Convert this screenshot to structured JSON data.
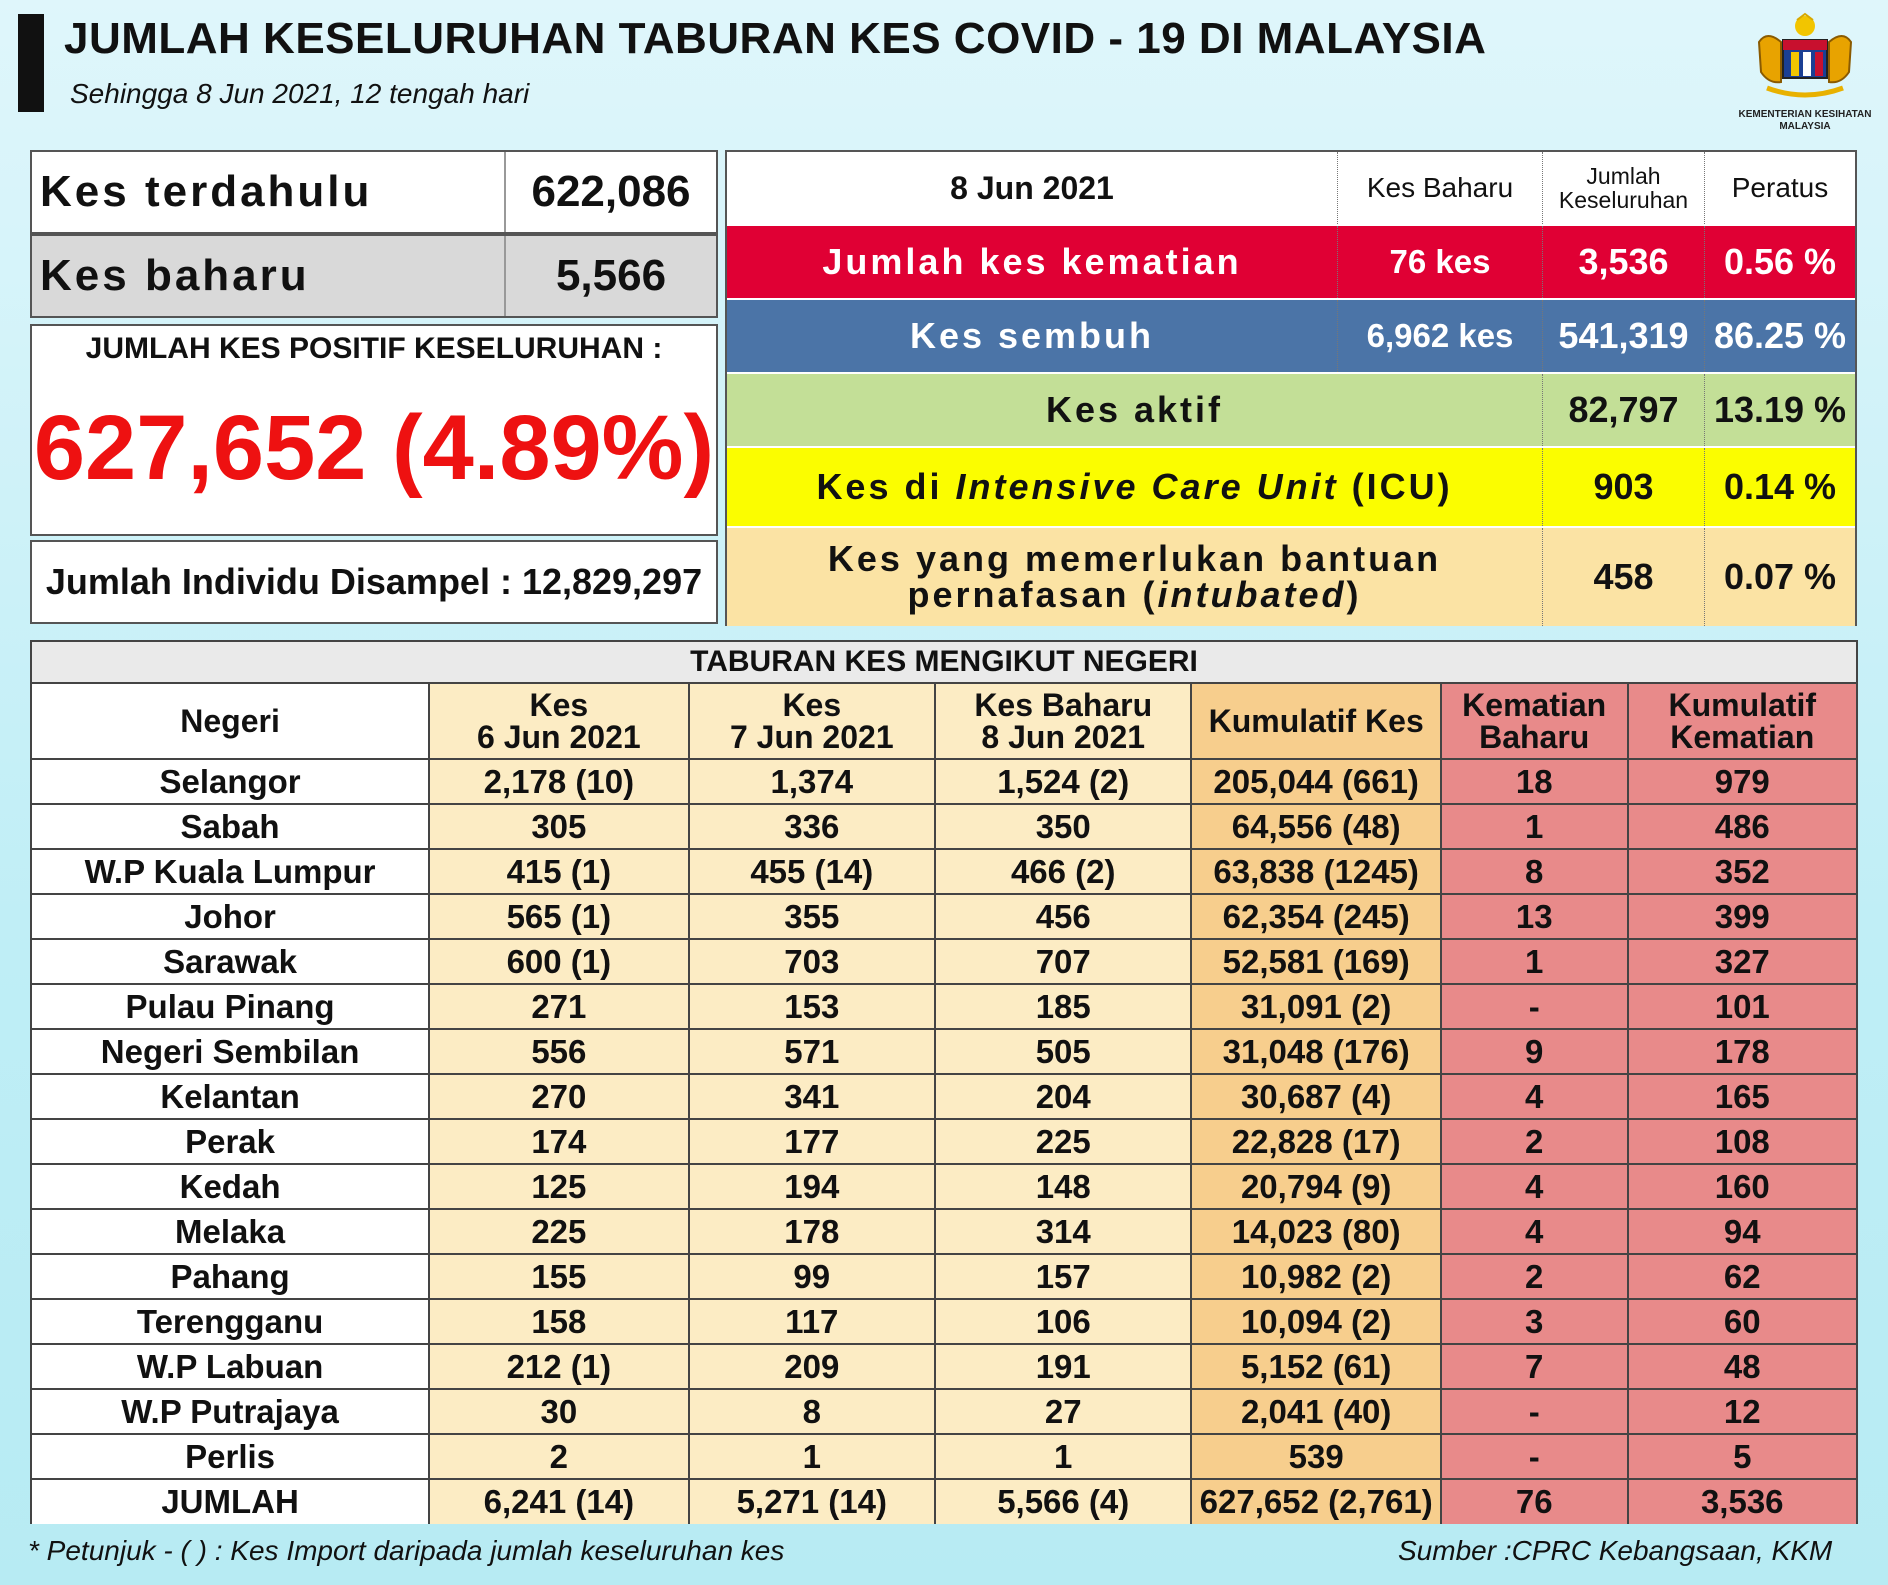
{
  "header": {
    "title": "JUMLAH KESELURUHAN TABURAN KES COVID - 19 DI MALAYSIA",
    "subtitle": "Sehingga 8 Jun 2021, 12 tengah hari"
  },
  "logo": {
    "name": "coat-of-arms-icon",
    "caption_line1": "KEMENTERIAN KESIHATAN",
    "caption_line2": "MALAYSIA"
  },
  "summary": {
    "terdahulu_label": "Kes terdahulu",
    "terdahulu_value": "622,086",
    "baharu_label": "Kes baharu",
    "baharu_value": "5,566",
    "positif_label": "JUMLAH KES POSITIF KESELURUHAN :",
    "positif_value": "627,652 (4.89%)",
    "sampel": "Jumlah Individu Disampel : 12,829,297"
  },
  "stats": {
    "head": {
      "date": "8 Jun 2021",
      "kes_baharu": "Kes Baharu",
      "jumlah_line1": "Jumlah",
      "jumlah_line2": "Keseluruhan",
      "peratus": "Peratus"
    },
    "kematian": {
      "label": "Jumlah kes kematian",
      "baharu": "76 kes",
      "jumlah": "3,536",
      "peratus": "0.56 %"
    },
    "sembuh": {
      "label": "Kes sembuh",
      "baharu": "6,962 kes",
      "jumlah": "541,319",
      "peratus": "86.25 %"
    },
    "aktif": {
      "label": "Kes aktif",
      "jumlah": "82,797",
      "peratus": "13.19 %"
    },
    "icu": {
      "label_pre": "Kes di ",
      "label_italic": "Intensive Care Unit",
      "label_post": " (ICU)",
      "jumlah": "903",
      "peratus": "0.14 %"
    },
    "intubated": {
      "label_line1": "Kes yang memerlukan bantuan",
      "label_line2_pre": "pernafasan (",
      "label_line2_italic": "intubated",
      "label_line2_post": ")",
      "jumlah": "458",
      "peratus": "0.07 %"
    }
  },
  "colors": {
    "kematian": "#e00034",
    "sembuh": "#4b74a7",
    "aktif": "#c3df97",
    "icu": "#fbfd00",
    "intubated": "#fbe3a4",
    "positif_text": "#ee1111"
  },
  "state_table": {
    "caption": "TABURAN KES MENGIKUT NEGERI",
    "columns": [
      [
        "Negeri"
      ],
      [
        "Kes",
        "6 Jun 2021"
      ],
      [
        "Kes",
        "7 Jun 2021"
      ],
      [
        "Kes Baharu",
        "8 Jun 2021"
      ],
      [
        "Kumulatif Kes"
      ],
      [
        "Kematian",
        "Baharu"
      ],
      [
        "Kumulatif",
        "Kematian"
      ]
    ],
    "rows": [
      [
        "Selangor",
        "2,178 (10)",
        "1,374",
        "1,524 (2)",
        "205,044 (661)",
        "18",
        "979"
      ],
      [
        "Sabah",
        "305",
        "336",
        "350",
        "64,556 (48)",
        "1",
        "486"
      ],
      [
        "W.P Kuala Lumpur",
        "415 (1)",
        "455 (14)",
        "466 (2)",
        "63,838 (1245)",
        "8",
        "352"
      ],
      [
        "Johor",
        "565 (1)",
        "355",
        "456",
        "62,354 (245)",
        "13",
        "399"
      ],
      [
        "Sarawak",
        "600 (1)",
        "703",
        "707",
        "52,581 (169)",
        "1",
        "327"
      ],
      [
        "Pulau Pinang",
        "271",
        "153",
        "185",
        "31,091 (2)",
        "-",
        "101"
      ],
      [
        "Negeri Sembilan",
        "556",
        "571",
        "505",
        "31,048 (176)",
        "9",
        "178"
      ],
      [
        "Kelantan",
        "270",
        "341",
        "204",
        "30,687 (4)",
        "4",
        "165"
      ],
      [
        "Perak",
        "174",
        "177",
        "225",
        "22,828 (17)",
        "2",
        "108"
      ],
      [
        "Kedah",
        "125",
        "194",
        "148",
        "20,794 (9)",
        "4",
        "160"
      ],
      [
        "Melaka",
        "225",
        "178",
        "314",
        "14,023 (80)",
        "4",
        "94"
      ],
      [
        "Pahang",
        "155",
        "99",
        "157",
        "10,982 (2)",
        "2",
        "62"
      ],
      [
        "Terengganu",
        "158",
        "117",
        "106",
        "10,094 (2)",
        "3",
        "60"
      ],
      [
        "W.P Labuan",
        "212 (1)",
        "209",
        "191",
        "5,152 (61)",
        "7",
        "48"
      ],
      [
        "W.P Putrajaya",
        "30",
        "8",
        "27",
        "2,041 (40)",
        "-",
        "12"
      ],
      [
        "Perlis",
        "2",
        "1",
        "1",
        "539",
        "-",
        "5"
      ],
      [
        "JUMLAH",
        "6,241 (14)",
        "5,271 (14)",
        "5,566 (4)",
        "627,652 (2,761)",
        "76",
        "3,536"
      ]
    ]
  },
  "footer": {
    "footnote": "* Petunjuk  - (  ) : Kes Import daripada jumlah keseluruhan kes",
    "source": "Sumber :CPRC Kebangsaan,  KKM"
  }
}
